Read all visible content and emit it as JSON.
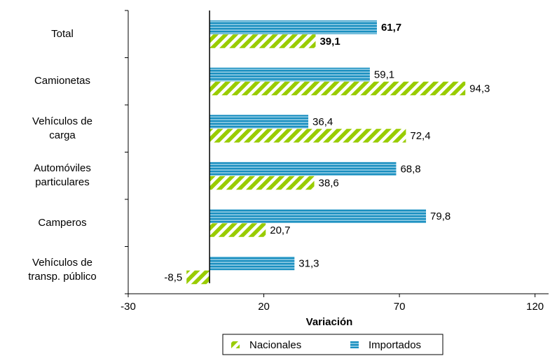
{
  "chart_data": {
    "type": "bar",
    "orientation": "horizontal",
    "categories": [
      "Total",
      "Camionetas",
      "Vehículos de\ncarga",
      "Automóviles\nparticulares",
      "Camperos",
      "Vehículos de\ntransp. público"
    ],
    "series": [
      {
        "name": "Nacionales",
        "color": "#99cc00",
        "values": [
          39.1,
          94.3,
          72.4,
          38.6,
          20.7,
          -8.5
        ],
        "value_labels": [
          "39,1",
          "94,3",
          "72,4",
          "38,6",
          "20,7",
          "-8,5"
        ]
      },
      {
        "name": "Importados",
        "color": "#1a8fc0",
        "values": [
          61.7,
          59.1,
          36.4,
          68.8,
          79.8,
          31.3
        ],
        "value_labels": [
          "61,7",
          "59,1",
          "36,4",
          "68,8",
          "79,8",
          "31,3"
        ]
      }
    ],
    "xlabel": "Variación",
    "xlim": [
      -30,
      125
    ],
    "xticks": [
      -30,
      20,
      70,
      120
    ],
    "legend": "bottom"
  }
}
